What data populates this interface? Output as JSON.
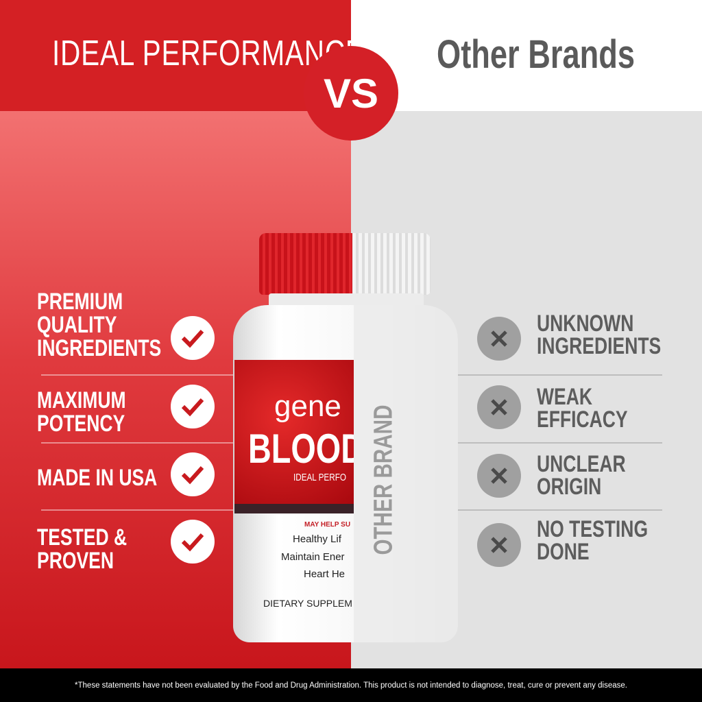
{
  "header": {
    "left_title": "IDEAL PERFORMANCE",
    "vs": "VS",
    "right_title": "Other Brands"
  },
  "left_items": [
    {
      "lines": [
        "PREMIUM",
        "QUALITY",
        "INGREDIENTS"
      ],
      "icon": "check-icon"
    },
    {
      "lines": [
        "MAXIMUM",
        "POTENCY"
      ],
      "icon": "check-icon"
    },
    {
      "lines": [
        "MADE IN USA"
      ],
      "icon": "check-icon"
    },
    {
      "lines": [
        "TESTED &",
        "PROVEN"
      ],
      "icon": "check-icon"
    }
  ],
  "right_items": [
    {
      "lines": [
        "UNKNOWN",
        "INGREDIENTS"
      ],
      "icon": "x-icon"
    },
    {
      "lines": [
        "WEAK",
        "EFFICACY"
      ],
      "icon": "x-icon"
    },
    {
      "lines": [
        "UNCLEAR",
        "ORIGIN"
      ],
      "icon": "x-icon"
    },
    {
      "lines": [
        "NO TESTING",
        "DONE"
      ],
      "icon": "x-icon"
    }
  ],
  "bottle": {
    "brand": "gene",
    "product": "BLOOD C",
    "tagline": "IDEAL PERFO",
    "may_help": "MAY HELP SU",
    "benefits": [
      "Healthy Lif",
      "Maintain Ener",
      "Heart He"
    ],
    "type": "DIETARY SUPPLEM",
    "other_label": "OTHER BRAND"
  },
  "footer": {
    "disclaimer": "*These statements have not been evaluated by the Food and Drug Administration. This product is not intended to diagnose, treat, cure or prevent any disease."
  },
  "colors": {
    "red": "#d42024",
    "gray_panel": "#e2e2e2",
    "text_gray": "#5a5a5a"
  }
}
